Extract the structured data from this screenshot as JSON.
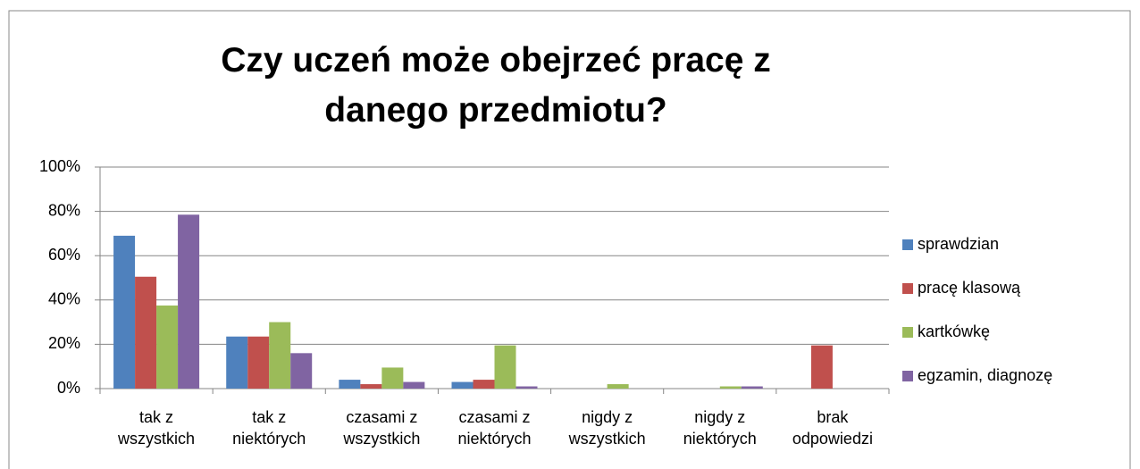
{
  "chart_data": {
    "type": "bar",
    "title": "Czy uczeń może obejrzeć pracę z danego przedmiotu?",
    "categories": [
      "tak z wszystkich",
      "tak z niektórych",
      "czasami z wszystkich",
      "czasami z niektórych",
      "nigdy z wszystkich",
      "nigdy z niektórych",
      "brak odpowiedzi"
    ],
    "series": [
      {
        "name": "sprawdzian",
        "color": "#4f81bd",
        "values": [
          69,
          23.5,
          4,
          3,
          0,
          0,
          0
        ]
      },
      {
        "name": "pracę klasową",
        "color": "#c0504d",
        "values": [
          50.5,
          23.5,
          2,
          4,
          0,
          0,
          19.5
        ]
      },
      {
        "name": "kartkówkę",
        "color": "#9bbb59",
        "values": [
          37.5,
          30,
          9.5,
          19.5,
          2,
          1,
          0
        ]
      },
      {
        "name": "egzamin, diagnozę",
        "color": "#8064a2",
        "values": [
          78.5,
          16,
          3,
          1,
          0,
          1,
          0
        ]
      }
    ],
    "ylim": [
      0,
      100
    ],
    "yticks": [
      {
        "value": 0,
        "label": "0%"
      },
      {
        "value": 20,
        "label": "20%"
      },
      {
        "value": 40,
        "label": "40%"
      },
      {
        "value": 60,
        "label": "60%"
      },
      {
        "value": 80,
        "label": "80%"
      },
      {
        "value": 100,
        "label": "100%"
      }
    ],
    "grid": true,
    "legend": "right"
  }
}
